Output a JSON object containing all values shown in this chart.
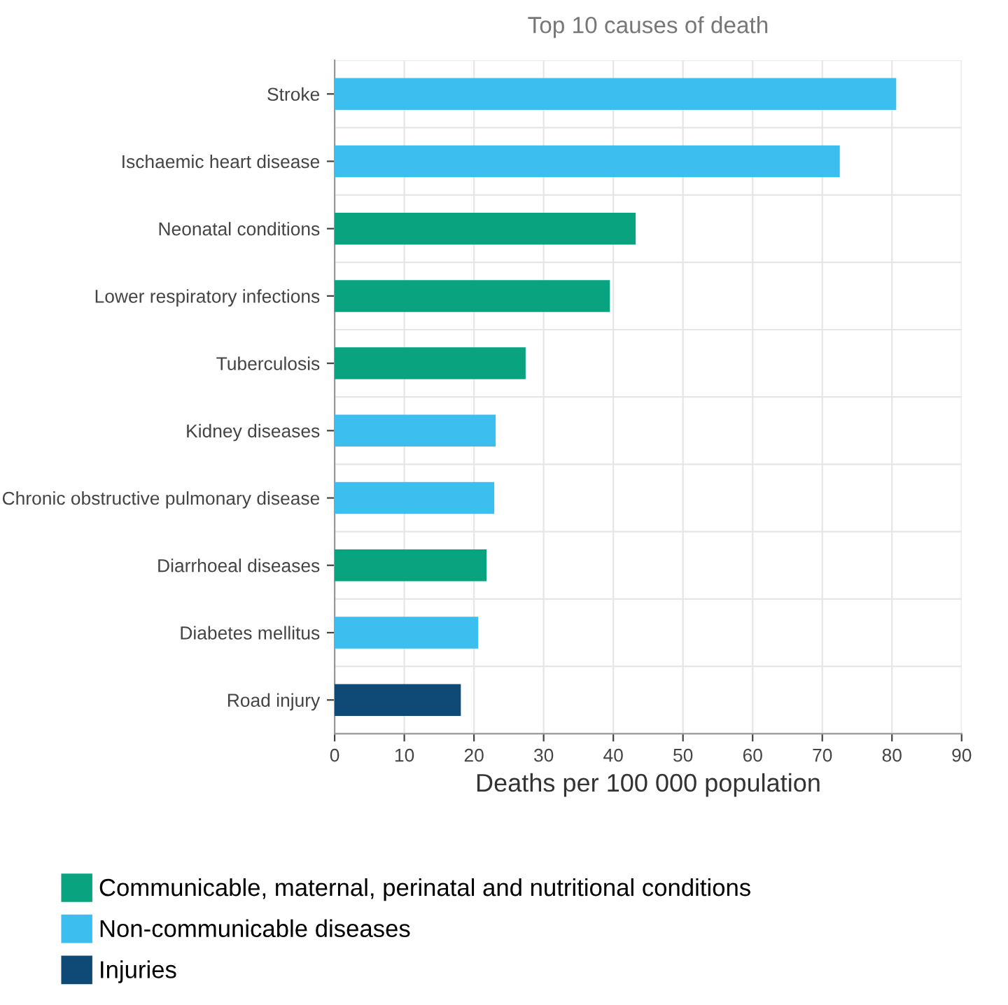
{
  "chart_data": {
    "type": "bar",
    "orientation": "horizontal",
    "stacked": true,
    "title": "Top 10 causes of death",
    "xlabel": "Deaths per 100 000 population",
    "categories": [
      "Stroke",
      "Ischaemic heart disease",
      "Neonatal conditions",
      "Lower respiratory infections",
      "Tuberculosis",
      "Kidney diseases",
      "Chronic obstructive pulmonary disease",
      "Diarrhoeal diseases",
      "Diabetes mellitus",
      "Road injury"
    ],
    "series": [
      {
        "name": "Communicable, maternal, perinatal and nutritional conditions",
        "color": "#0aa37f",
        "values": [
          null,
          null,
          43.1,
          39.4,
          27.3,
          null,
          null,
          21.7,
          null,
          null
        ]
      },
      {
        "name": "Non-communicable diseases",
        "color": "#3cbfef",
        "values": [
          80.5,
          72.4,
          null,
          null,
          null,
          23.0,
          22.8,
          null,
          20.5,
          null
        ]
      },
      {
        "name": "Injuries",
        "color": "#0e4a75",
        "values": [
          null,
          null,
          null,
          null,
          null,
          null,
          null,
          null,
          null,
          18.0
        ]
      }
    ],
    "xlim": [
      0,
      90
    ],
    "xticks": [
      0,
      10,
      20,
      30,
      40,
      50,
      60,
      70,
      80,
      90
    ],
    "grid": true,
    "legend": "bottom left"
  }
}
